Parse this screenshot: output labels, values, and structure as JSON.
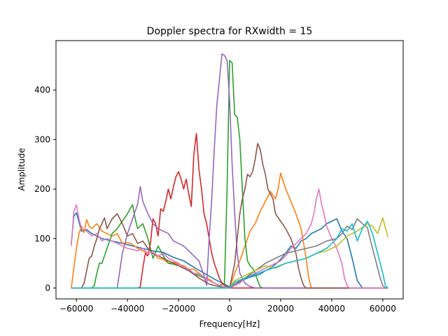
{
  "chart_data": {
    "type": "line",
    "title": "Doppler spectra for RXwidth = 15",
    "xlabel": "Frequency[Hz]",
    "ylabel": "Amplitude",
    "xlim": [
      -68000,
      68000
    ],
    "ylim": [
      -22,
      500
    ],
    "xticks": [
      -60000,
      -40000,
      -20000,
      0,
      20000,
      40000,
      60000
    ],
    "xtick_labels": [
      "−60000",
      "−40000",
      "−20000",
      "0",
      "20000",
      "40000",
      "60000"
    ],
    "yticks": [
      0,
      100,
      200,
      300,
      400
    ],
    "ytick_labels": [
      "0",
      "100",
      "200",
      "300",
      "400"
    ],
    "grid": false,
    "legend": "none",
    "series": [
      {
        "color": "#1f77b4",
        "x": [
          -62000,
          -61000,
          -60000,
          -58000,
          -56000,
          -54000,
          -50000,
          -46000,
          -42000,
          -38000,
          -34000,
          -30000,
          -26000,
          -22000,
          -18000,
          -14000,
          -10000,
          -6000,
          -2000,
          0,
          2000,
          4000,
          6000,
          8000,
          10000,
          12000,
          14000,
          16000,
          18000,
          20000,
          22000,
          24000,
          26000,
          28000,
          30000,
          32000,
          34000,
          36000,
          38000,
          40000,
          42000,
          44000,
          46000,
          48000,
          50000,
          52000,
          54000,
          56000,
          58000,
          60000,
          62000
        ],
        "y": [
          90,
          145,
          152,
          115,
          118,
          110,
          100,
          95,
          90,
          85,
          80,
          75,
          72,
          62,
          55,
          42,
          30,
          18,
          8,
          2,
          8,
          12,
          18,
          22,
          25,
          28,
          35,
          40,
          48,
          58,
          70,
          85,
          80,
          95,
          100,
          110,
          115,
          120,
          130,
          135,
          140,
          115,
          100,
          60,
          15,
          0,
          0,
          0,
          0,
          0,
          0
        ]
      },
      {
        "color": "#ff7f0e",
        "x": [
          -62000,
          -61000,
          -60000,
          -59000,
          -58000,
          -57000,
          -56000,
          -55000,
          -54000,
          -52000,
          -50000,
          -48000,
          -46000,
          -44000,
          -42000,
          -40000,
          -38000,
          -36000,
          -34000,
          -32000,
          -30000,
          -28000,
          -26000,
          -24000,
          -22000,
          -20000,
          -18000,
          -16000,
          -14000,
          -12000,
          -10000,
          -8000,
          -6000,
          -4000,
          -2000,
          0,
          2000,
          4000,
          6000,
          8000,
          10000,
          12000,
          14000,
          16000,
          18000,
          19000,
          20000,
          22000,
          24000,
          26000,
          28000,
          30000,
          31000,
          32000,
          34000,
          36000,
          40000,
          50000,
          62000
        ],
        "y": [
          0,
          40,
          80,
          110,
          125,
          112,
          138,
          125,
          120,
          130,
          115,
          110,
          105,
          110,
          90,
          92,
          88,
          80,
          75,
          70,
          72,
          60,
          58,
          50,
          52,
          48,
          45,
          38,
          38,
          30,
          22,
          18,
          10,
          5,
          2,
          0,
          30,
          55,
          85,
          115,
          130,
          155,
          175,
          195,
          180,
          200,
          232,
          200,
          175,
          150,
          120,
          60,
          20,
          0,
          0,
          0,
          0,
          0,
          0
        ]
      },
      {
        "color": "#2ca02c",
        "x": [
          -62000,
          -54000,
          -53000,
          -52000,
          -51000,
          -50000,
          -48000,
          -46000,
          -44000,
          -42000,
          -40000,
          -39000,
          -38000,
          -37000,
          -36000,
          -34000,
          -32000,
          -30000,
          -28000,
          -26000,
          -24000,
          -22000,
          -20000,
          -18000,
          -16000,
          -14000,
          -12000,
          -10000,
          -8000,
          -6000,
          -4000,
          -2000,
          -1000,
          0,
          1000,
          2000,
          3000,
          4000,
          5000,
          6000,
          7000,
          8000,
          9000,
          10000,
          11000,
          12000,
          13000,
          62000
        ],
        "y": [
          0,
          0,
          5,
          30,
          50,
          50,
          80,
          110,
          120,
          135,
          150,
          160,
          168,
          140,
          120,
          130,
          100,
          60,
          85,
          65,
          50,
          48,
          45,
          40,
          35,
          28,
          25,
          20,
          15,
          10,
          5,
          10,
          200,
          460,
          455,
          350,
          345,
          300,
          200,
          100,
          55,
          45,
          40,
          30,
          15,
          2,
          0,
          0
        ]
      },
      {
        "color": "#d62728",
        "x": [
          -62000,
          -36000,
          -35000,
          -34000,
          -33000,
          -32000,
          -31000,
          -30000,
          -29000,
          -28000,
          -27000,
          -26000,
          -25000,
          -24000,
          -23000,
          -22000,
          -21000,
          -20000,
          -19000,
          -18000,
          -17000,
          -16000,
          -15000,
          -14000,
          -13000,
          -12000,
          -11000,
          -10000,
          -9000,
          -8000,
          -7000,
          -6000,
          -5000,
          -4000,
          -3000,
          -2000,
          -1000,
          0,
          62000
        ],
        "y": [
          0,
          0,
          2,
          40,
          70,
          65,
          90,
          140,
          130,
          105,
          160,
          155,
          175,
          200,
          180,
          205,
          225,
          235,
          220,
          200,
          220,
          190,
          165,
          270,
          312,
          240,
          200,
          150,
          130,
          100,
          70,
          50,
          35,
          20,
          10,
          5,
          2,
          0,
          0
        ]
      },
      {
        "color": "#9467bd",
        "x": [
          -62000,
          -44000,
          -42000,
          -40000,
          -38000,
          -36000,
          -35000,
          -34000,
          -32000,
          -30000,
          -28000,
          -26000,
          -24000,
          -22000,
          -20000,
          -18000,
          -16000,
          -14000,
          -12000,
          -10000,
          -9000,
          -8000,
          -7000,
          -6000,
          -5000,
          -4000,
          -3000,
          -2000,
          -1000,
          0,
          1000,
          2000,
          3000,
          4000,
          6000,
          8000,
          10000,
          62000
        ],
        "y": [
          0,
          0,
          70,
          110,
          140,
          170,
          205,
          175,
          150,
          130,
          120,
          115,
          110,
          95,
          90,
          85,
          75,
          65,
          55,
          25,
          5,
          100,
          180,
          280,
          370,
          420,
          473,
          470,
          460,
          380,
          250,
          150,
          70,
          30,
          10,
          3,
          0,
          0
        ]
      },
      {
        "color": "#8c564b",
        "x": [
          -62000,
          -58000,
          -57000,
          -56000,
          -55000,
          -54000,
          -53000,
          -52000,
          -51000,
          -50000,
          -49000,
          -48000,
          -46000,
          -44000,
          -42000,
          -40000,
          -38000,
          -36000,
          -34000,
          -32000,
          -30000,
          -28000,
          -26000,
          -24000,
          -22000,
          -20000,
          -18000,
          -16000,
          -14000,
          -12000,
          -10000,
          -8000,
          -6000,
          -4000,
          -2000,
          0,
          2000,
          3000,
          4000,
          5000,
          6000,
          7000,
          8000,
          9000,
          10000,
          11000,
          12000,
          13000,
          14000,
          15000,
          16000,
          17000,
          18000,
          20000,
          22000,
          24000,
          26000,
          27000,
          28000,
          29000,
          30000,
          62000
        ],
        "y": [
          0,
          0,
          10,
          35,
          60,
          65,
          85,
          100,
          120,
          130,
          142,
          120,
          140,
          150,
          130,
          105,
          110,
          90,
          95,
          80,
          70,
          65,
          60,
          55,
          50,
          45,
          40,
          35,
          28,
          20,
          14,
          8,
          5,
          3,
          1,
          0,
          50,
          100,
          150,
          180,
          200,
          230,
          225,
          235,
          260,
          292,
          280,
          250,
          230,
          200,
          190,
          180,
          150,
          135,
          120,
          100,
          70,
          40,
          20,
          5,
          0,
          0
        ]
      },
      {
        "color": "#e377c2",
        "x": [
          -62000,
          -61000,
          -60000,
          -59000,
          -58000,
          -56000,
          -54000,
          -52000,
          -50000,
          -48000,
          -46000,
          -44000,
          -42000,
          -40000,
          -38000,
          -36000,
          -34000,
          -32000,
          -30000,
          -28000,
          -26000,
          -24000,
          -22000,
          -20000,
          -18000,
          -16000,
          -14000,
          -12000,
          -10000,
          -8000,
          -6000,
          -4000,
          -2000,
          0,
          2000,
          4000,
          6000,
          8000,
          10000,
          12000,
          14000,
          16000,
          18000,
          20000,
          22000,
          24000,
          26000,
          28000,
          30000,
          32000,
          33000,
          34000,
          35000,
          36000,
          37000,
          38000,
          40000,
          42000,
          44000,
          45000,
          46000,
          47000,
          48000,
          62000
        ],
        "y": [
          85,
          155,
          168,
          140,
          120,
          115,
          105,
          110,
          95,
          100,
          95,
          90,
          85,
          80,
          78,
          75,
          80,
          70,
          72,
          65,
          70,
          60,
          55,
          50,
          42,
          38,
          30,
          28,
          22,
          15,
          10,
          5,
          2,
          0,
          5,
          10,
          20,
          25,
          30,
          35,
          40,
          45,
          50,
          55,
          65,
          80,
          90,
          100,
          110,
          130,
          150,
          180,
          200,
          170,
          150,
          125,
          100,
          80,
          50,
          20,
          5,
          0,
          0,
          0
        ]
      },
      {
        "color": "#7f7f7f",
        "x": [
          -62000,
          -58000,
          -54000,
          -50000,
          -46000,
          -42000,
          -38000,
          -34000,
          -30000,
          -26000,
          -22000,
          -18000,
          -14000,
          -10000,
          -6000,
          -2000,
          0,
          2000,
          6000,
          10000,
          14000,
          18000,
          22000,
          26000,
          30000,
          34000,
          38000,
          42000,
          44000,
          46000,
          48000,
          50000,
          52000,
          54000,
          55000,
          56000,
          57000,
          58000,
          59000,
          60000,
          61000,
          62000
        ],
        "y": [
          0,
          0,
          0,
          0,
          0,
          0,
          0,
          0,
          0,
          0,
          0,
          0,
          0,
          0,
          0,
          0,
          0,
          8,
          20,
          35,
          50,
          60,
          70,
          75,
          80,
          85,
          95,
          100,
          110,
          125,
          118,
          140,
          130,
          122,
          100,
          80,
          60,
          40,
          20,
          5,
          0,
          0
        ]
      },
      {
        "color": "#bcbd22",
        "x": [
          -62000,
          -40000,
          -20000,
          0,
          2000,
          6000,
          10000,
          14000,
          18000,
          22000,
          26000,
          30000,
          34000,
          38000,
          42000,
          46000,
          50000,
          54000,
          56000,
          58000,
          60000,
          62000
        ],
        "y": [
          0,
          0,
          0,
          0,
          15,
          25,
          35,
          45,
          40,
          50,
          55,
          60,
          70,
          75,
          85,
          105,
          115,
          130,
          125,
          110,
          142,
          103
        ]
      },
      {
        "color": "#17becf",
        "x": [
          -62000,
          -40000,
          -20000,
          0,
          2000,
          6000,
          10000,
          14000,
          18000,
          22000,
          26000,
          30000,
          34000,
          38000,
          42000,
          44000,
          46000,
          48000,
          50000,
          52000,
          54000,
          56000,
          58000,
          60000,
          61000,
          62000
        ],
        "y": [
          0,
          0,
          0,
          0,
          12,
          20,
          28,
          35,
          42,
          50,
          55,
          60,
          70,
          80,
          100,
          120,
          115,
          130,
          95,
          120,
          135,
          110,
          70,
          30,
          5,
          0
        ]
      }
    ]
  }
}
